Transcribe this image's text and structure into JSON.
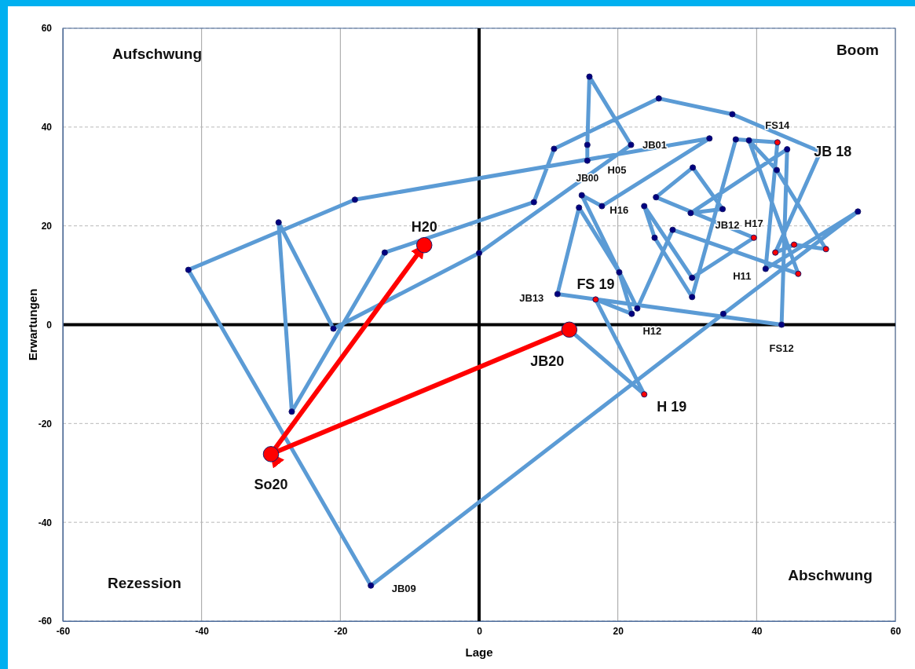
{
  "chart_data": {
    "type": "line",
    "xlabel": "Lage",
    "ylabel": "Erwartungen",
    "xlim": [
      -60,
      60
    ],
    "ylim": [
      -60,
      60
    ],
    "xticks": [
      -60,
      -40,
      -20,
      0,
      20,
      40,
      60
    ],
    "yticks": [
      -60,
      -40,
      -20,
      0,
      20,
      40,
      60
    ],
    "grid": true,
    "marker": "circle",
    "line_style": "solid",
    "series": [
      {
        "color": "#5b9bd5",
        "x": [
          15.6,
          15.6,
          15.9,
          21.9,
          0,
          -21,
          -28.9,
          -27,
          -13.6,
          7.9,
          10.8,
          25.9,
          36.5,
          49.2,
          42.7,
          45.4,
          50,
          42.9,
          38.9,
          46,
          27.9,
          22.8,
          14.8,
          17.7,
          33.2,
          -17.9,
          -41.9,
          -15.6,
          35.2,
          54.6,
          41.3,
          43,
          37,
          30.7,
          25.3,
          23.8,
          30.7,
          39.6,
          25.5,
          30.8,
          35.1,
          30.5,
          44.4,
          43.6,
          11.3,
          14.4,
          20.2,
          22,
          16.8,
          23.8,
          13
        ],
        "values": [
          33.2,
          36.4,
          50.2,
          36.4,
          14.5,
          -0.8,
          20.7,
          -17.6,
          14.6,
          24.8,
          35.6,
          45.8,
          42.6,
          35,
          14.6,
          16.2,
          15.3,
          31.3,
          37.3,
          10.3,
          19.2,
          3.3,
          26.2,
          24,
          37.7,
          25.3,
          11.1,
          -52.8,
          2.2,
          22.9,
          11.3,
          36.9,
          37.5,
          5.6,
          17.6,
          24,
          9.5,
          17.6,
          25.8,
          31.8,
          23.4,
          22.6,
          35.5,
          0,
          6.2,
          23.7,
          10.6,
          2.2,
          5.1,
          -14.1,
          -1
        ],
        "colors": [
          "#000080",
          "#000080",
          "#000080",
          "#000080",
          "#000080",
          "#000080",
          "#000080",
          "#000080",
          "#000080",
          "#000080",
          "#000080",
          "#000080",
          "#000080",
          "#000080",
          "#ff0000",
          "#ff0000",
          "#ff0000",
          "#000080",
          "#000080",
          "#ff0000",
          "#000080",
          "#000080",
          "#000080",
          "#000080",
          "#000080",
          "#000080",
          "#000080",
          "#000080",
          "#000080",
          "#000080",
          "#000080",
          "#ff0000",
          "#000080",
          "#000080",
          "#000080",
          "#000080",
          "#000080",
          "#ff0000",
          "#000080",
          "#000080",
          "#000080",
          "#000080",
          "#000080",
          "#000080",
          "#000080",
          "#000080",
          "#000080",
          "#000080",
          "#ff0000",
          "#ff0000",
          "#ff0000"
        ]
      },
      {
        "color": "#ff0000",
        "x": [
          13,
          -30,
          -7.9
        ],
        "values": [
          -1,
          -26.2,
          16.1
        ]
      }
    ],
    "annotations": [
      "Aufschwung",
      "Boom",
      "Rezession",
      "Abschwung",
      {
        "text": "JB00",
        "x": 15.6,
        "y": 33.2
      },
      {
        "text": "H05",
        "x": 21.9,
        "y": 36.4
      },
      {
        "text": "JB01",
        "x": 21.9,
        "y": 36.4
      },
      {
        "text": "FS14",
        "x": 43,
        "y": 36.9
      },
      {
        "text": "JB 18",
        "x": 44.4,
        "y": 35.5
      },
      {
        "text": "H16",
        "x": 23.8,
        "y": 24
      },
      {
        "text": "JB12",
        "x": 35.1,
        "y": 23.4
      },
      {
        "text": "H17",
        "x": 39.6,
        "y": 17.6
      },
      {
        "text": "H11",
        "x": 41.3,
        "y": 11.3
      },
      {
        "text": "JB13",
        "x": 11.3,
        "y": 6.2
      },
      {
        "text": "FS 19",
        "x": 16.8,
        "y": 5.1
      },
      {
        "text": "H12",
        "x": 22,
        "y": 2.2
      },
      {
        "text": "FS12",
        "x": 43.6,
        "y": 0
      },
      {
        "text": "JB20",
        "x": 13,
        "y": -1
      },
      {
        "text": "H 19",
        "x": 23.8,
        "y": -14.1
      },
      {
        "text": "So20",
        "x": -30,
        "y": -26.2
      },
      {
        "text": "JB09",
        "x": -15.6,
        "y": -52.8
      },
      {
        "text": "H20",
        "x": -7.9,
        "y": 16.1
      }
    ]
  }
}
